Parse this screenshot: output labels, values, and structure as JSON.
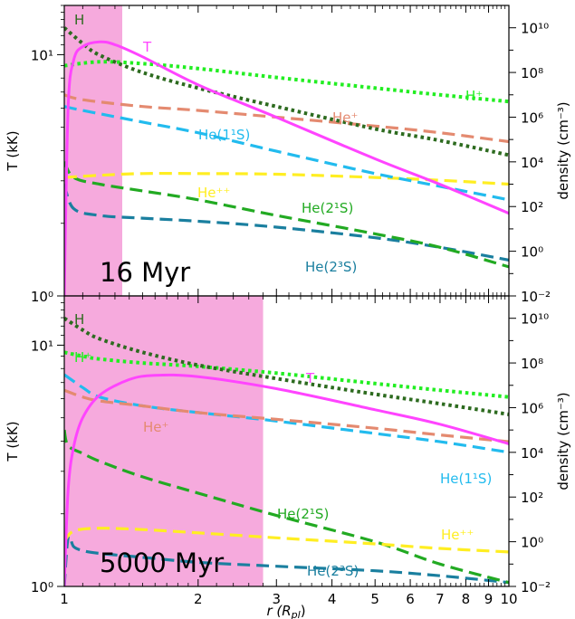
{
  "chart_data": [
    {
      "type": "line",
      "panel_label": "16 Myr",
      "xlim": [
        1,
        10
      ],
      "xscale": "log",
      "ylabel_left": "T (kK)",
      "ylim_left": [
        1,
        16
      ],
      "yscale_left": "log",
      "ylabel_right": "density (cm⁻³)",
      "ylim_right": [
        0.01,
        100000000000.0
      ],
      "yscale_right": "log",
      "shaded_region": [
        1,
        1.35
      ],
      "series": [
        {
          "name": "T",
          "axis": "left",
          "color": "#ff44ff",
          "style": "solid",
          "x": [
            1.0,
            1.02,
            1.05,
            1.1,
            1.2,
            1.3,
            1.5,
            2.0,
            3.0,
            5.0,
            7.0,
            10.0
          ],
          "y": [
            1.0,
            6.0,
            9.5,
            10.8,
            11.3,
            11.0,
            9.8,
            7.5,
            5.5,
            3.7,
            2.9,
            2.2
          ]
        },
        {
          "name": "H",
          "axis": "right",
          "color": "#2d6b1f",
          "style": "dotted",
          "x": [
            1.0,
            1.1,
            1.2,
            1.5,
            2.0,
            3.0,
            5.0,
            7.0,
            10.0
          ],
          "y": [
            10000000000.0,
            2000000000.0,
            600000000.0,
            100000000.0,
            20000000.0,
            3000000.0,
            300000.0,
            90000.0,
            20000.0
          ]
        },
        {
          "name": "H⁺",
          "axis": "right",
          "color": "#22ee22",
          "style": "dotted",
          "x": [
            1.0,
            1.2,
            1.5,
            2.0,
            3.0,
            5.0,
            7.0,
            10.0
          ],
          "y": [
            200000000.0,
            300000000.0,
            250000000.0,
            150000000.0,
            60000000.0,
            20000000.0,
            10000000.0,
            5000000.0
          ]
        },
        {
          "name": "He⁺",
          "axis": "right",
          "color": "#e48a70",
          "style": "dashed",
          "x": [
            1.0,
            1.1,
            1.5,
            2.0,
            3.0,
            5.0,
            7.0,
            10.0
          ],
          "y": [
            10000000.0,
            6000000.0,
            3000000.0,
            2000000.0,
            1000000.0,
            400000.0,
            200000.0,
            80000.0
          ]
        },
        {
          "name": "He(1¹S)",
          "axis": "right",
          "color": "#22bbee",
          "style": "dashed",
          "x": [
            1.0,
            1.1,
            1.5,
            2.0,
            3.0,
            5.0,
            7.0,
            10.0
          ],
          "y": [
            3000000.0,
            2000000.0,
            600000.0,
            200000.0,
            30000.0,
            3000.0,
            800.0,
            200.0
          ]
        },
        {
          "name": "He⁺⁺",
          "axis": "right",
          "color": "#ffee22",
          "style": "dashed",
          "x": [
            1.0,
            1.2,
            1.5,
            2.0,
            3.0,
            5.0,
            7.0,
            10.0
          ],
          "y": [
            2000.0,
            2500.0,
            3000.0,
            3000.0,
            2800.0,
            2000.0,
            1500.0,
            1000.0
          ]
        },
        {
          "name": "He(2¹S)",
          "axis": "right",
          "color": "#22aa22",
          "style": "dashed",
          "x": [
            1.0,
            1.05,
            1.2,
            1.5,
            2.0,
            3.0,
            5.0,
            7.0,
            10.0
          ],
          "y": [
            10000.0,
            2000.0,
            1000.0,
            500.0,
            200.0,
            40,
            6,
            1.5,
            0.2
          ]
        },
        {
          "name": "He(2³S)",
          "axis": "right",
          "color": "#1a7f9f",
          "style": "dashed",
          "x": [
            1.0,
            1.05,
            1.2,
            1.5,
            2.0,
            3.0,
            5.0,
            7.0,
            10.0
          ],
          "y": [
            1000.0,
            80,
            40,
            30,
            22,
            12,
            4,
            1.5,
            0.4
          ]
        }
      ],
      "labels": {
        "T": "T",
        "H": "H",
        "Hplus": "H⁺",
        "Heplus": "He⁺",
        "He11S": "He(1¹S)",
        "Heplusplus": "He⁺⁺",
        "He21S": "He(2¹S)",
        "He23S": "He(2³S)"
      }
    },
    {
      "type": "line",
      "panel_label": "5000 Myr",
      "xlim": [
        1,
        10
      ],
      "xscale": "log",
      "xlabel": "r (R",
      "xlabel_sub": "pl",
      "xlabel_end": ")",
      "ylabel_left": "T (kK)",
      "ylim_left": [
        1,
        16
      ],
      "yscale_left": "log",
      "ylabel_right": "density (cm⁻³)",
      "ylim_right": [
        0.01,
        100000000000.0
      ],
      "yscale_right": "log",
      "shaded_region": [
        1,
        2.8
      ],
      "series": [
        {
          "name": "T",
          "axis": "left",
          "color": "#ff44ff",
          "style": "solid",
          "x": [
            1.0,
            1.02,
            1.05,
            1.1,
            1.2,
            1.4,
            1.6,
            2.0,
            3.0,
            5.0,
            7.0,
            10.0
          ],
          "y": [
            1.0,
            2.5,
            3.8,
            5.0,
            6.2,
            7.2,
            7.5,
            7.4,
            6.6,
            5.4,
            4.7,
            3.9
          ]
        },
        {
          "name": "H",
          "axis": "right",
          "color": "#2d6b1f",
          "style": "dotted",
          "x": [
            1.0,
            1.1,
            1.2,
            1.5,
            2.0,
            3.0,
            5.0,
            7.0,
            10.0
          ],
          "y": [
            10000000000.0,
            3000000000.0,
            1200000000.0,
            300000000.0,
            80000000.0,
            20000000.0,
            4000000.0,
            1500000.0,
            500000.0
          ]
        },
        {
          "name": "H⁺",
          "axis": "right",
          "color": "#22ee22",
          "style": "dotted",
          "x": [
            1.0,
            1.1,
            1.2,
            1.5,
            2.0,
            3.0,
            5.0,
            7.0,
            10.0
          ],
          "y": [
            300000000.0,
            200000000.0,
            150000000.0,
            100000000.0,
            70000000.0,
            35000000.0,
            12000000.0,
            6000000.0,
            3000000.0
          ]
        },
        {
          "name": "He⁺",
          "axis": "right",
          "color": "#e48a70",
          "style": "dashed",
          "x": [
            1.0,
            1.1,
            1.2,
            1.5,
            2.0,
            3.0,
            5.0,
            7.0,
            10.0
          ],
          "y": [
            6000000.0,
            3000000.0,
            2000000.0,
            1200000.0,
            600000.0,
            300000.0,
            120000.0,
            60000.0,
            30000.0
          ]
        },
        {
          "name": "He(1¹S)",
          "axis": "right",
          "color": "#22bbee",
          "style": "dashed",
          "x": [
            1.0,
            1.05,
            1.1,
            1.2,
            1.5,
            2.0,
            3.0,
            5.0,
            7.0,
            10.0
          ],
          "y": [
            30000000.0,
            15000000.0,
            8000000.0,
            3000000.0,
            1200000.0,
            600000.0,
            250000.0,
            70000.0,
            30000.0,
            10000.0
          ]
        },
        {
          "name": "He⁺⁺",
          "axis": "right",
          "color": "#ffee22",
          "style": "dashed",
          "x": [
            1.0,
            1.05,
            1.2,
            1.5,
            2.0,
            3.0,
            5.0,
            7.0,
            10.0
          ],
          "y": [
            1,
            3,
            4,
            3.5,
            2.5,
            1.5,
            0.8,
            0.5,
            0.35
          ]
        },
        {
          "name": "He(2¹S)",
          "axis": "right",
          "color": "#22aa22",
          "style": "dashed",
          "x": [
            1.0,
            1.02,
            1.1,
            1.2,
            1.5,
            2.0,
            3.0,
            5.0,
            7.0,
            10.0
          ],
          "y": [
            100000.0,
            20000.0,
            9000.0,
            4000.0,
            800.0,
            150.0,
            15,
            1,
            0.1,
            0.015
          ]
        },
        {
          "name": "He(2³S)",
          "axis": "right",
          "color": "#1a7f9f",
          "style": "dashed",
          "x": [
            1.0,
            1.02,
            1.05,
            1.1,
            1.2,
            1.5,
            2.0,
            3.0,
            5.0,
            7.0,
            10.0
          ],
          "y": [
            0.01,
            1.5,
            0.6,
            0.4,
            0.3,
            0.2,
            0.12,
            0.08,
            0.05,
            0.03,
            0.015
          ]
        }
      ],
      "labels": {
        "T": "T",
        "H": "H",
        "Hplus": "H⁺",
        "Heplus": "He⁺",
        "He11S": "He(1¹S)",
        "Heplusplus": "He⁺⁺",
        "He21S": "He(2¹S)",
        "He23S": "He(2³S)"
      }
    }
  ],
  "x_tick_labels": [
    "1",
    "2",
    "3",
    "4",
    "5",
    "6",
    "7",
    "8",
    "9",
    "10"
  ],
  "left_tick_labels": [
    "10¹",
    "10⁰"
  ],
  "right_tick_labels": [
    "10⁻²",
    "10⁰",
    "10²",
    "10⁴",
    "10⁶",
    "10⁸",
    "10¹⁰"
  ]
}
